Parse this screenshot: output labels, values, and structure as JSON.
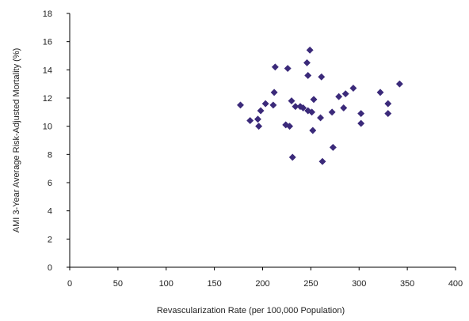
{
  "chart_data": {
    "type": "scatter",
    "title": "",
    "xlabel": "Revascularization Rate (per 100,000 Population)",
    "ylabel": "AMI 3-Year Average Risk-Adjusted Mortality (%)",
    "xlim": [
      0,
      400
    ],
    "ylim": [
      0,
      18
    ],
    "x_ticks": [
      0,
      50,
      100,
      150,
      200,
      250,
      300,
      350,
      400
    ],
    "y_ticks": [
      0,
      2,
      4,
      6,
      8,
      10,
      12,
      14,
      16,
      18
    ],
    "grid": false,
    "legend": "none",
    "marker": "diamond",
    "marker_color": "#3b2a7a",
    "points": [
      {
        "x": 177,
        "y": 11.5
      },
      {
        "x": 187,
        "y": 10.4
      },
      {
        "x": 195,
        "y": 10.5
      },
      {
        "x": 196,
        "y": 10.0
      },
      {
        "x": 198,
        "y": 11.1
      },
      {
        "x": 203,
        "y": 11.6
      },
      {
        "x": 211,
        "y": 11.5
      },
      {
        "x": 212,
        "y": 12.4
      },
      {
        "x": 213,
        "y": 14.2
      },
      {
        "x": 224,
        "y": 10.1
      },
      {
        "x": 226,
        "y": 14.1
      },
      {
        "x": 228,
        "y": 10.0
      },
      {
        "x": 230,
        "y": 11.8
      },
      {
        "x": 231,
        "y": 7.8
      },
      {
        "x": 234,
        "y": 11.4
      },
      {
        "x": 239,
        "y": 11.4
      },
      {
        "x": 242,
        "y": 11.3
      },
      {
        "x": 246,
        "y": 14.5
      },
      {
        "x": 247,
        "y": 13.6
      },
      {
        "x": 247,
        "y": 11.1
      },
      {
        "x": 249,
        "y": 15.4
      },
      {
        "x": 251,
        "y": 11.0
      },
      {
        "x": 252,
        "y": 9.7
      },
      {
        "x": 253,
        "y": 11.9
      },
      {
        "x": 260,
        "y": 10.6
      },
      {
        "x": 261,
        "y": 13.5
      },
      {
        "x": 262,
        "y": 7.5
      },
      {
        "x": 272,
        "y": 11.0
      },
      {
        "x": 273,
        "y": 8.5
      },
      {
        "x": 279,
        "y": 12.1
      },
      {
        "x": 284,
        "y": 11.3
      },
      {
        "x": 286,
        "y": 12.3
      },
      {
        "x": 294,
        "y": 12.7
      },
      {
        "x": 302,
        "y": 10.9
      },
      {
        "x": 302,
        "y": 10.2
      },
      {
        "x": 322,
        "y": 12.4
      },
      {
        "x": 330,
        "y": 11.6
      },
      {
        "x": 330,
        "y": 10.9
      },
      {
        "x": 342,
        "y": 13.0
      }
    ]
  }
}
